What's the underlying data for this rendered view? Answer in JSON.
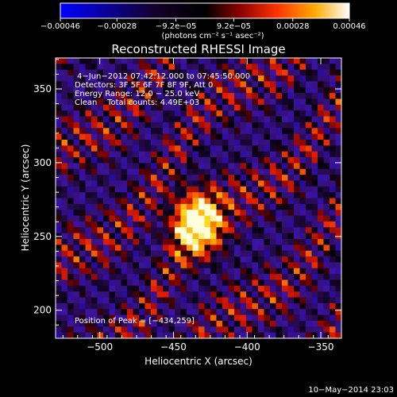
{
  "chart_data": {
    "type": "heatmap",
    "title": "Reconstructed RHESSI Image",
    "xlabel": "Heliocentric X (arcsec)",
    "ylabel": "Heliocentric Y (arcsec)",
    "xlim": [
      -530,
      -336
    ],
    "ylim": [
      181,
      371
    ],
    "x_ticks": [
      -500,
      -450,
      -400,
      -350
    ],
    "x_tick_labels": [
      "−500",
      "−450",
      "−400",
      "−350"
    ],
    "y_ticks": [
      200,
      250,
      300,
      350
    ],
    "y_tick_labels": [
      "200",
      "250",
      "300",
      "350"
    ],
    "colorbar": {
      "vmin": -0.00046,
      "vmax": 0.00046,
      "ticks": [
        -0.00046,
        -0.00028,
        -9.2e-05,
        9.2e-05,
        0.00028,
        0.00046
      ],
      "tick_labels": [
        "−0.00046",
        "−0.00028",
        "−9.2e−05",
        "9.2e−05",
        "0.00028",
        "0.00046"
      ],
      "unit_label": "(photons cm⁻² s⁻¹ asec⁻²)",
      "colors": [
        "#0000ff",
        "#000000",
        "#ff3300",
        "#ffaa00",
        "#ffffff"
      ]
    },
    "annotations": [
      "4−Jun−2012 07:42:12.000 to 07:45:50.000",
      "Detectors: 3F 5F 6F 7F 8F 9F, Att 0",
      "Energy Range: 12.0 − 25.0 keV",
      "Clean    Total counts: 4.49E+03"
    ],
    "peak_label": "Position of Peak = [−434,259]",
    "peak": {
      "x": -434,
      "y": 259,
      "value": 0.00046
    },
    "grid": false
  },
  "footer": {
    "timestamp": "10−May−2014 23:03"
  }
}
